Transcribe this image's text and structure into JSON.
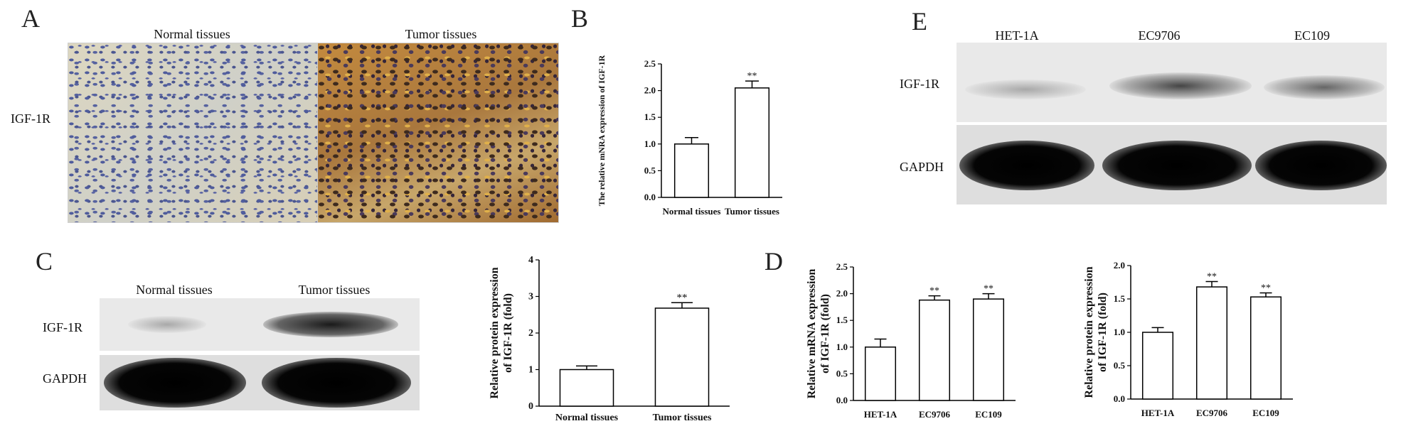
{
  "panel_a": {
    "letter": "A",
    "normal_label": "Normal tissues",
    "tumor_label": "Tumor tissues",
    "row_label": "IGF-1R"
  },
  "panel_b": {
    "letter": "B"
  },
  "panel_c": {
    "letter": "C",
    "normal_label": "Normal tissues",
    "tumor_label": "Tumor tissues",
    "row1_label": "IGF-1R",
    "row2_label": "GAPDH"
  },
  "panel_d": {
    "letter": "D"
  },
  "panel_e": {
    "letter": "E",
    "col_labels": [
      "HET-1A",
      "EC9706",
      "EC109"
    ],
    "row1_label": "IGF-1R",
    "row2_label": "GAPDH"
  },
  "blot_levels": {
    "c_igf1r": [
      0.25,
      0.9
    ],
    "e_igf1r": [
      0.3,
      0.75,
      0.6
    ]
  },
  "chart_data": [
    {
      "id": "B",
      "type": "bar",
      "categories": [
        "Normal tissues",
        "Tumor tissues"
      ],
      "values": [
        1.0,
        2.05
      ],
      "errors": [
        0.12,
        0.13
      ],
      "significance": [
        "",
        "**"
      ],
      "ylabel": "The relative mNRA expression of IGF-1R",
      "ylim": [
        0.0,
        2.5
      ],
      "yticks": [
        "0.0",
        "0.5",
        "1.0",
        "1.5",
        "2.0",
        "2.5"
      ]
    },
    {
      "id": "C",
      "type": "bar",
      "categories": [
        "Normal tissues",
        "Tumor tissues"
      ],
      "values": [
        1.0,
        2.68
      ],
      "errors": [
        0.1,
        0.15
      ],
      "significance": [
        "",
        "**"
      ],
      "ylabel": [
        "Relative protein expression",
        "of IGF-1R (fold)"
      ],
      "ylim": [
        0,
        4
      ],
      "yticks": [
        "0",
        "1",
        "2",
        "3",
        "4"
      ]
    },
    {
      "id": "D1",
      "type": "bar",
      "categories": [
        "HET-1A",
        "EC9706",
        "EC109"
      ],
      "values": [
        1.0,
        1.88,
        1.9
      ],
      "errors": [
        0.15,
        0.08,
        0.1
      ],
      "significance": [
        "",
        "**",
        "**"
      ],
      "ylabel": [
        "Relative mRNA expression",
        "of IGF-1R (fold)"
      ],
      "ylim": [
        0.0,
        2.5
      ],
      "yticks": [
        "0.0",
        "0.5",
        "1.0",
        "1.5",
        "2.0",
        "2.5"
      ]
    },
    {
      "id": "D2",
      "type": "bar",
      "categories": [
        "HET-1A",
        "EC9706",
        "EC109"
      ],
      "values": [
        1.0,
        1.68,
        1.53
      ],
      "errors": [
        0.07,
        0.08,
        0.06
      ],
      "significance": [
        "",
        "**",
        "**"
      ],
      "ylabel": [
        "Relative protein expression",
        "of IGF-1R (fold)"
      ],
      "ylim": [
        0.0,
        2.0
      ],
      "yticks": [
        "0.0",
        "0.5",
        "1.0",
        "1.5",
        "2.0"
      ]
    }
  ]
}
